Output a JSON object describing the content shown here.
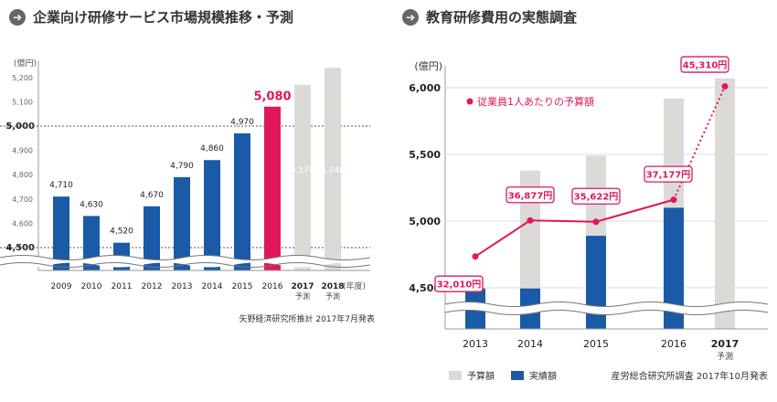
{
  "left": {
    "title": "企業向け研修サービス市場規模推移・予測",
    "arrow_icon": "circle-arrow-right-icon",
    "source": "矢野経済研究所推計 2017年7月発表",
    "colors": {
      "actual": "#1a5aa6",
      "highlight": "#e0175b",
      "forecast": "#dcdad7"
    },
    "chart_data": {
      "type": "bar",
      "unit": "(億円)",
      "xunit": "(年度)",
      "categories": [
        "2009",
        "2010",
        "2011",
        "2012",
        "2013",
        "2014",
        "2015",
        "2016",
        "2017",
        "2018"
      ],
      "series": [
        {
          "values": [
            4710,
            4630,
            4520,
            4670,
            4790,
            4860,
            4970,
            5080,
            5170,
            5240
          ]
        }
      ],
      "value_labels": [
        "4,710",
        "4,630",
        "4,520",
        "4,670",
        "4,790",
        "4,860",
        "4,970",
        "5,080",
        "5,170",
        "5,240"
      ],
      "forecast_note": "予測",
      "forecast_categories": [
        "2017",
        "2018"
      ],
      "highlight_category": "2016",
      "yticks": [
        {
          "v": 4500,
          "label": "4,500",
          "major": true
        },
        {
          "v": 4600,
          "label": "4,600"
        },
        {
          "v": 4700,
          "label": "4,700"
        },
        {
          "v": 4800,
          "label": "4,800"
        },
        {
          "v": 4900,
          "label": "4,900"
        },
        {
          "v": 5000,
          "label": "5,000",
          "major": true
        },
        {
          "v": 5100,
          "label": "5,100"
        },
        {
          "v": 5200,
          "label": "5,200"
        }
      ],
      "ylim": [
        4500,
        5250
      ],
      "axis_break": true,
      "grid": false
    }
  },
  "right": {
    "title": "教育研修費用の実態調査",
    "arrow_icon": "circle-arrow-right-icon",
    "source": "産労総合研究所調査 2017年10月発表",
    "colors": {
      "budget": "#dcdad7",
      "actual": "#1a5aa6",
      "per_person": "#e0175b"
    },
    "chart_data": {
      "type": "bar",
      "unit": "(億円)",
      "categories": [
        "2013",
        "2014",
        "2015",
        "2016",
        "2017"
      ],
      "forecast_note": "予測",
      "forecast_category": "2017",
      "series": [
        {
          "name": "予算額",
          "values": [
            null,
            5380,
            5490,
            5920,
            6070
          ]
        },
        {
          "name": "実績額",
          "values": [
            4495,
            4495,
            4890,
            5100,
            null
          ]
        }
      ],
      "line_series": {
        "name": "従業員1人あたりの予算額",
        "values": [
          32010,
          36877,
          35622,
          37177,
          45310
        ],
        "labels": [
          "32,010円",
          "36,877円",
          "35,622円",
          "37,177円",
          "45,310円"
        ],
        "plot_levels": [
          4735,
          5005,
          4995,
          5160,
          6010
        ],
        "forecast_from_index": 3
      },
      "yticks": [
        {
          "v": 4500,
          "label": "4,500"
        },
        {
          "v": 5000,
          "label": "5,000"
        },
        {
          "v": 5500,
          "label": "5,500"
        },
        {
          "v": 6000,
          "label": "6,000"
        }
      ],
      "ylim": [
        4500,
        6080
      ],
      "axis_break": true,
      "grid": true
    }
  }
}
